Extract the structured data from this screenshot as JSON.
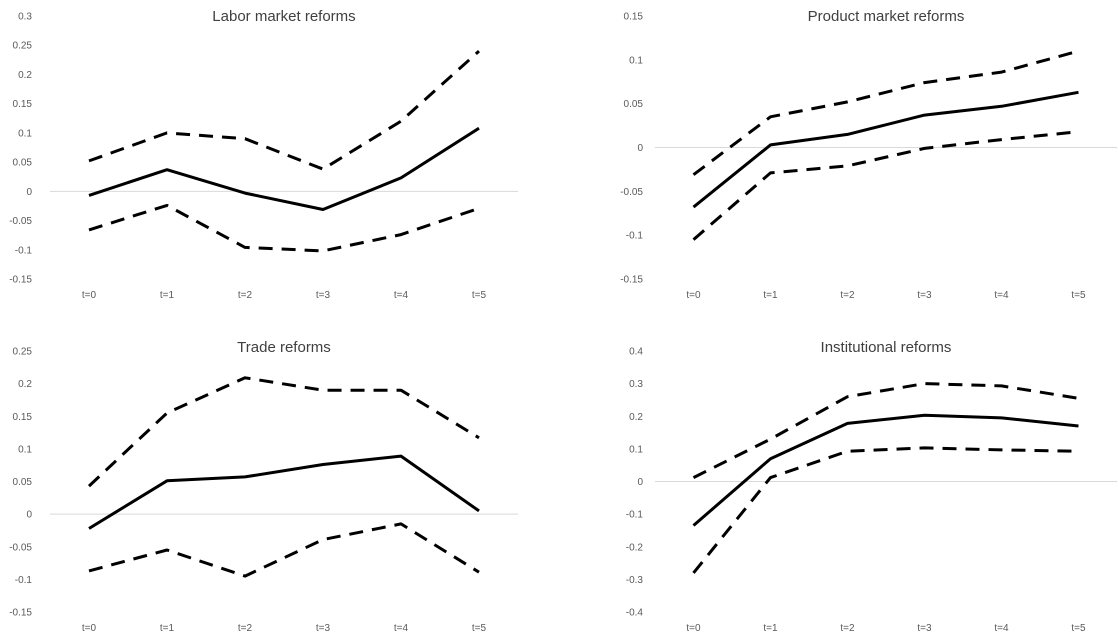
{
  "chart_data": [
    {
      "type": "line",
      "title": "Labor market reforms",
      "categories": [
        "t=0",
        "t=1",
        "t=2",
        "t=3",
        "t=4",
        "t=5"
      ],
      "ylim": [
        -0.15,
        0.3
      ],
      "yticks": [
        "0.3",
        "0.25",
        "0.2",
        "0.15",
        "0.1",
        "0.05",
        "0",
        "-0.05",
        "-0.1",
        "-0.15"
      ],
      "grid": false,
      "series": [
        {
          "style": "solid",
          "values": [
            -0.007,
            0.037,
            -0.003,
            -0.031,
            0.023,
            0.108
          ]
        },
        {
          "style": "dashed",
          "values": [
            0.052,
            0.1,
            0.09,
            0.038,
            0.12,
            0.24
          ]
        },
        {
          "style": "dashed",
          "values": [
            -0.066,
            -0.024,
            -0.096,
            -0.102,
            -0.074,
            -0.029
          ]
        }
      ]
    },
    {
      "type": "line",
      "title": "Product market reforms",
      "categories": [
        "t=0",
        "t=1",
        "t=2",
        "t=3",
        "t=4",
        "t=5"
      ],
      "ylim": [
        -0.15,
        0.15
      ],
      "yticks": [
        "0.15",
        "0.1",
        "0.05",
        "0",
        "-0.05",
        "-0.1",
        "-0.15"
      ],
      "grid": false,
      "series": [
        {
          "style": "solid",
          "values": [
            -0.068,
            0.003,
            0.015,
            0.037,
            0.047,
            0.063
          ]
        },
        {
          "style": "dashed",
          "values": [
            -0.031,
            0.035,
            0.052,
            0.074,
            0.086,
            0.11
          ]
        },
        {
          "style": "dashed",
          "values": [
            -0.105,
            -0.029,
            -0.021,
            -0.001,
            0.009,
            0.018
          ]
        }
      ]
    },
    {
      "type": "line",
      "title": "Trade reforms",
      "categories": [
        "t=0",
        "t=1",
        "t=2",
        "t=3",
        "t=4",
        "t=5"
      ],
      "ylim": [
        -0.15,
        0.25
      ],
      "yticks": [
        "0.25",
        "0.2",
        "0.15",
        "0.1",
        "0.05",
        "0",
        "-0.05",
        "-0.1",
        "-0.15"
      ],
      "grid": false,
      "series": [
        {
          "style": "solid",
          "values": [
            -0.022,
            0.051,
            0.057,
            0.076,
            0.089,
            0.005
          ]
        },
        {
          "style": "dashed",
          "values": [
            0.043,
            0.155,
            0.209,
            0.19,
            0.19,
            0.117
          ]
        },
        {
          "style": "dashed",
          "values": [
            -0.087,
            -0.055,
            -0.095,
            -0.039,
            -0.015,
            -0.089
          ]
        }
      ]
    },
    {
      "type": "line",
      "title": "Institutional reforms",
      "categories": [
        "t=0",
        "t=1",
        "t=2",
        "t=3",
        "t=4",
        "t=5"
      ],
      "ylim": [
        -0.4,
        0.4
      ],
      "yticks": [
        "0.4",
        "0.3",
        "0.2",
        "0.1",
        "0",
        "-0.1",
        "-0.2",
        "-0.3",
        "-0.4"
      ],
      "grid": false,
      "series": [
        {
          "style": "solid",
          "values": [
            -0.135,
            0.07,
            0.178,
            0.203,
            0.195,
            0.17
          ]
        },
        {
          "style": "dashed",
          "values": [
            0.012,
            0.13,
            0.26,
            0.3,
            0.293,
            0.255
          ]
        },
        {
          "style": "dashed",
          "values": [
            -0.28,
            0.012,
            0.093,
            0.103,
            0.097,
            0.093
          ]
        }
      ]
    }
  ]
}
